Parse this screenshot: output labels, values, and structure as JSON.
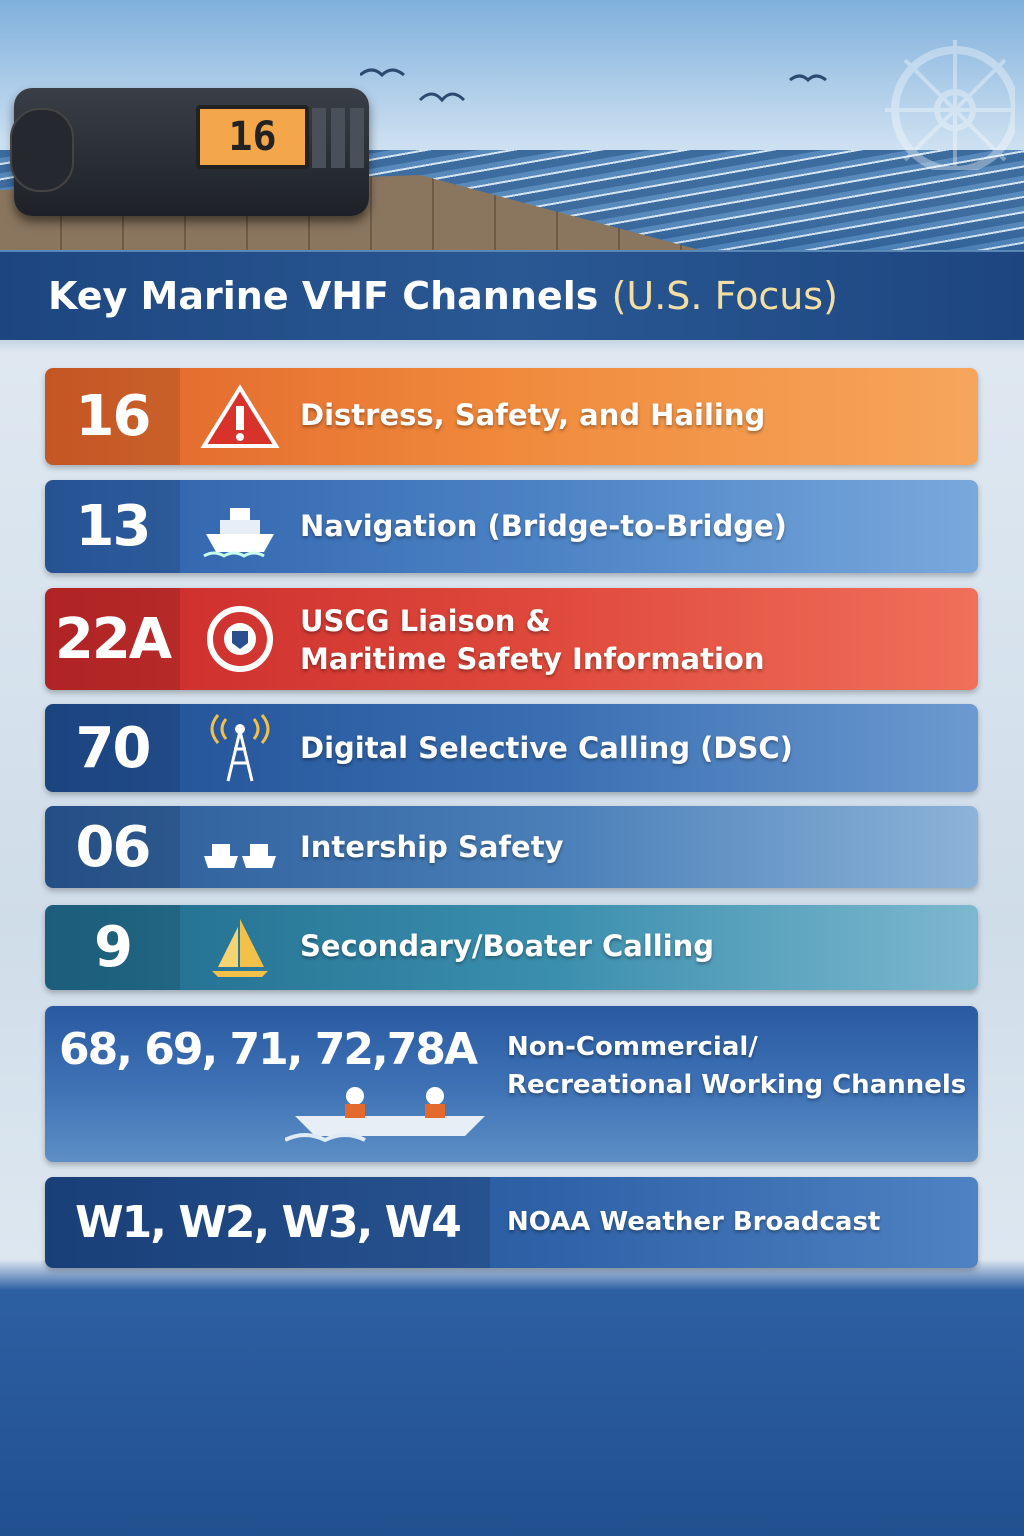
{
  "radio": {
    "display": "16"
  },
  "header": {
    "title": "Key Marine VHF Channels",
    "subtitle": "(U.S. Focus)"
  },
  "channels": [
    {
      "channel": "16",
      "description": [
        "Distress, Safety, and Hailing"
      ]
    },
    {
      "channel": "13",
      "description": [
        "Navigation (Bridge-to-Bridge)"
      ]
    },
    {
      "channel": "22A",
      "description": [
        "USCG Liaison &",
        "Maritime Safety Information"
      ]
    },
    {
      "channel": "70",
      "description": [
        "Digital Selective Calling (DSC)"
      ]
    },
    {
      "channel": "06",
      "description": [
        "Intership Safety"
      ]
    },
    {
      "channel": "9",
      "description": [
        "Secondary/Boater Calling"
      ]
    },
    {
      "channel": "68, 69, 71, 72,78A",
      "description": [
        "Non-Commercial/",
        "Recreational Working Channels"
      ]
    },
    {
      "channel": "W1, W2, W3, W4",
      "description": [
        "NOAA Weather Broadcast"
      ]
    }
  ]
}
